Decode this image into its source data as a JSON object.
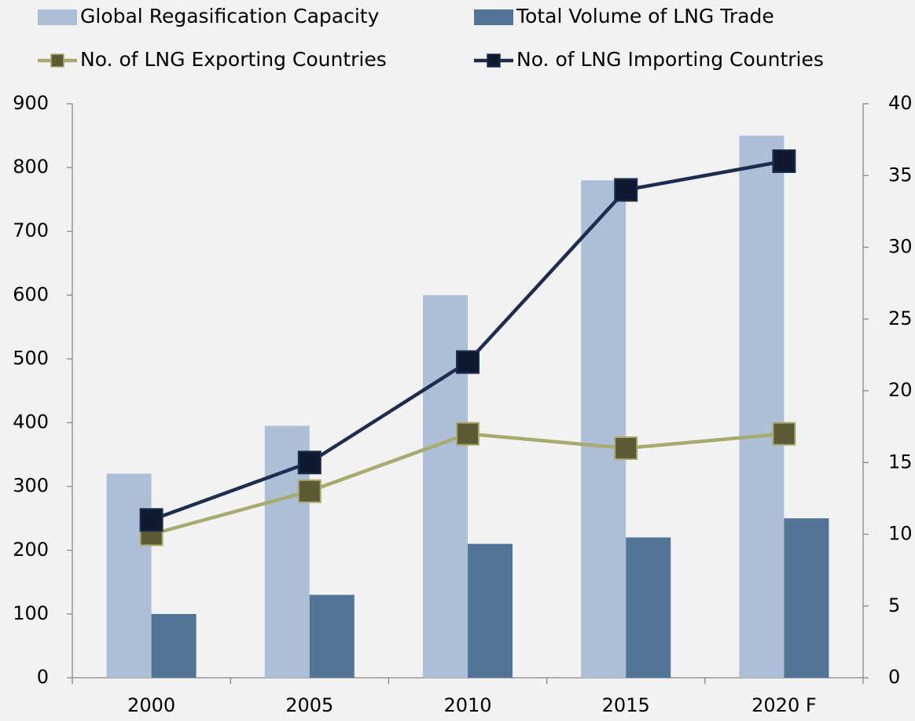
{
  "chart_data": {
    "type": "bar",
    "categories": [
      "2000",
      "2005",
      "2010",
      "2015",
      "2020 F"
    ],
    "series": [
      {
        "name": "Global Regasification Capacity",
        "type": "bar",
        "color": "#adbfd6",
        "values": [
          320,
          395,
          600,
          780,
          850
        ]
      },
      {
        "name": "Total Volume of LNG Trade",
        "type": "bar",
        "color": "#527496",
        "values": [
          100,
          130,
          210,
          220,
          250
        ]
      },
      {
        "name": "No. of LNG Exporting Countries",
        "type": "line",
        "axis": "y2",
        "color": "#a8ab6e",
        "marker_color": "#5c5a34",
        "values": [
          10,
          13,
          17,
          16,
          17
        ]
      },
      {
        "name": "No. of LNG Importing Countries",
        "type": "line",
        "axis": "y2",
        "color": "#1e2d4f",
        "marker_color": "#0f1930",
        "values": [
          11,
          15,
          22,
          34,
          36
        ]
      }
    ],
    "ylim": [
      0,
      900
    ],
    "yticks": [
      0,
      100,
      200,
      300,
      400,
      500,
      600,
      700,
      800,
      900
    ],
    "y2lim": [
      0,
      40
    ],
    "y2ticks": [
      0,
      5,
      10,
      15,
      20,
      25,
      30,
      35,
      40
    ]
  }
}
